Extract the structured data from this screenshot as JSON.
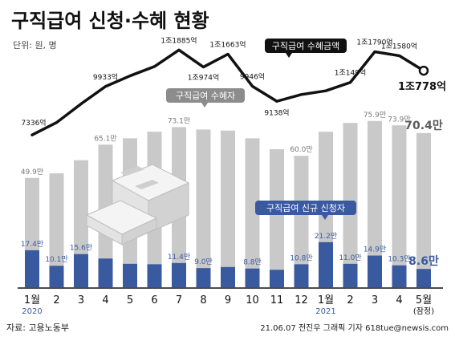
{
  "header": {
    "title": "구직급여 신청·수혜 현황",
    "unit": "단위: 원, 명"
  },
  "footer": {
    "source": "자료: 고용노동부",
    "credit": "21.06.07 전진우 그래픽 기자 618tue@newsis.com"
  },
  "colors": {
    "bar_gray": "#c9c9c9",
    "bar_blue": "#3a5aa0",
    "line": "#111111",
    "callout_gray": "#8c8c8c",
    "callout_blue": "#3a5aa0",
    "callout_black": "#111111"
  },
  "chart_data": {
    "type": "bar",
    "categories": [
      "1월",
      "2",
      "3",
      "4",
      "5",
      "6",
      "7",
      "8",
      "9",
      "10",
      "11",
      "12",
      "1월",
      "2",
      "3",
      "4",
      "5월"
    ],
    "category_sublabels": [
      "2020",
      "",
      "",
      "",
      "",
      "",
      "",
      "",
      "",
      "",
      "",
      "",
      "2021",
      "",
      "",
      "",
      "(잠정)"
    ],
    "series": [
      {
        "name": "구직급여 수혜자",
        "type": "bar",
        "values": [
          49.9,
          52.0,
          58.0,
          65.1,
          68.0,
          71.0,
          73.1,
          72.0,
          71.5,
          68.0,
          63.0,
          60.0,
          71.0,
          75.0,
          75.9,
          73.9,
          70.4
        ],
        "labels": [
          "49.9만",
          "",
          "",
          "65.1만",
          "",
          "",
          "73.1만",
          "",
          "",
          "",
          "",
          "60.0만",
          "",
          "",
          "75.9만",
          "73.9만",
          "70.4만"
        ]
      },
      {
        "name": "구직급여 신규 신청자",
        "type": "bar",
        "values": [
          17.4,
          10.1,
          15.6,
          13.5,
          11.0,
          10.8,
          11.4,
          9.0,
          9.5,
          8.8,
          8.2,
          10.8,
          21.2,
          11.0,
          14.9,
          10.3,
          8.6
        ],
        "labels": [
          "17.4만",
          "10.1만",
          "15.6만",
          "",
          "",
          "",
          "11.4만",
          "9.0만",
          "",
          "8.8만",
          "",
          "10.8만",
          "21.2만",
          "11.0만",
          "14.9만",
          "10.3만",
          "8.6만"
        ]
      },
      {
        "name": "구직급여 수혜금액",
        "type": "line",
        "values": [
          7336,
          8000,
          9000,
          9933,
          10500,
          11000,
          11885,
          10974,
          11663,
          9946,
          9138,
          9500,
          9700,
          10149,
          11790,
          11580,
          10778
        ],
        "labels": [
          "7336억",
          "",
          "",
          "9933억",
          "",
          "",
          "1조1885억",
          "1조974억",
          "1조1663억",
          "9946억",
          "9138억",
          "",
          "",
          "1조149억",
          "1조1790억",
          "1조1580억",
          "1조778억"
        ]
      }
    ]
  }
}
